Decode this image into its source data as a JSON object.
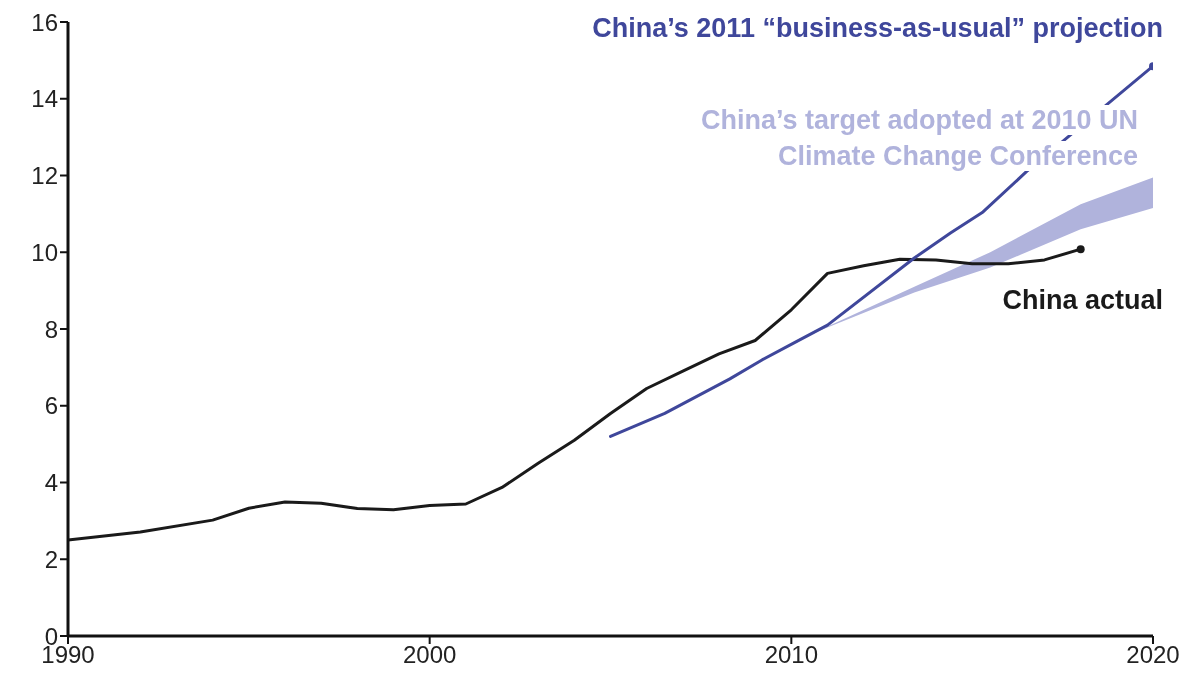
{
  "chart_data": {
    "type": "line",
    "xlim": [
      1990,
      2020
    ],
    "xticks": [
      1990,
      2000,
      2010,
      2020
    ],
    "ylim": [
      0,
      16
    ],
    "yticks": [
      0,
      2,
      4,
      6,
      8,
      10,
      12,
      14,
      16
    ],
    "series": [
      {
        "name": "China actual",
        "type": "line",
        "color": "#1a1a1a",
        "x": [
          1990,
          1992,
          1994,
          1995,
          1996,
          1997,
          1998,
          1999,
          2000,
          2001,
          2002,
          2003,
          2004,
          2005,
          2006,
          2007,
          2008,
          2009,
          2010,
          2011,
          2012,
          2013,
          2014,
          2015,
          2016,
          2017,
          2018
        ],
        "values": [
          2.5,
          2.71,
          3.02,
          3.33,
          3.49,
          3.46,
          3.32,
          3.29,
          3.4,
          3.44,
          3.87,
          4.5,
          5.1,
          5.8,
          6.45,
          6.9,
          7.35,
          7.7,
          8.5,
          9.45,
          9.65,
          9.82,
          9.8,
          9.7,
          9.7,
          9.8,
          10.08
        ]
      },
      {
        "name": "China’s 2011 “business-as-usual” projection",
        "type": "line",
        "color": "#3f479b",
        "x": [
          2005,
          2006.5,
          2008.3,
          2009.2,
          2010.1,
          2011,
          2013.4,
          2014.4,
          2015.3,
          2016.5,
          2020
        ],
        "values": [
          5.2,
          5.8,
          6.7,
          7.2,
          7.65,
          8.1,
          9.85,
          10.5,
          11.05,
          12.1,
          14.85
        ]
      },
      {
        "name": "China’s target adopted at 2010 UN Climate Change Conference",
        "type": "area",
        "color": "#b0b3dc",
        "x": [
          2010.5,
          2013.4,
          2015.5,
          2018,
          2020
        ],
        "values": [
          null,
          null,
          null,
          null,
          null
        ],
        "lower": [
          7.85,
          8.95,
          9.6,
          10.6,
          11.15
        ],
        "upper": [
          7.85,
          9.1,
          10.0,
          11.25,
          11.95
        ]
      }
    ]
  }
}
